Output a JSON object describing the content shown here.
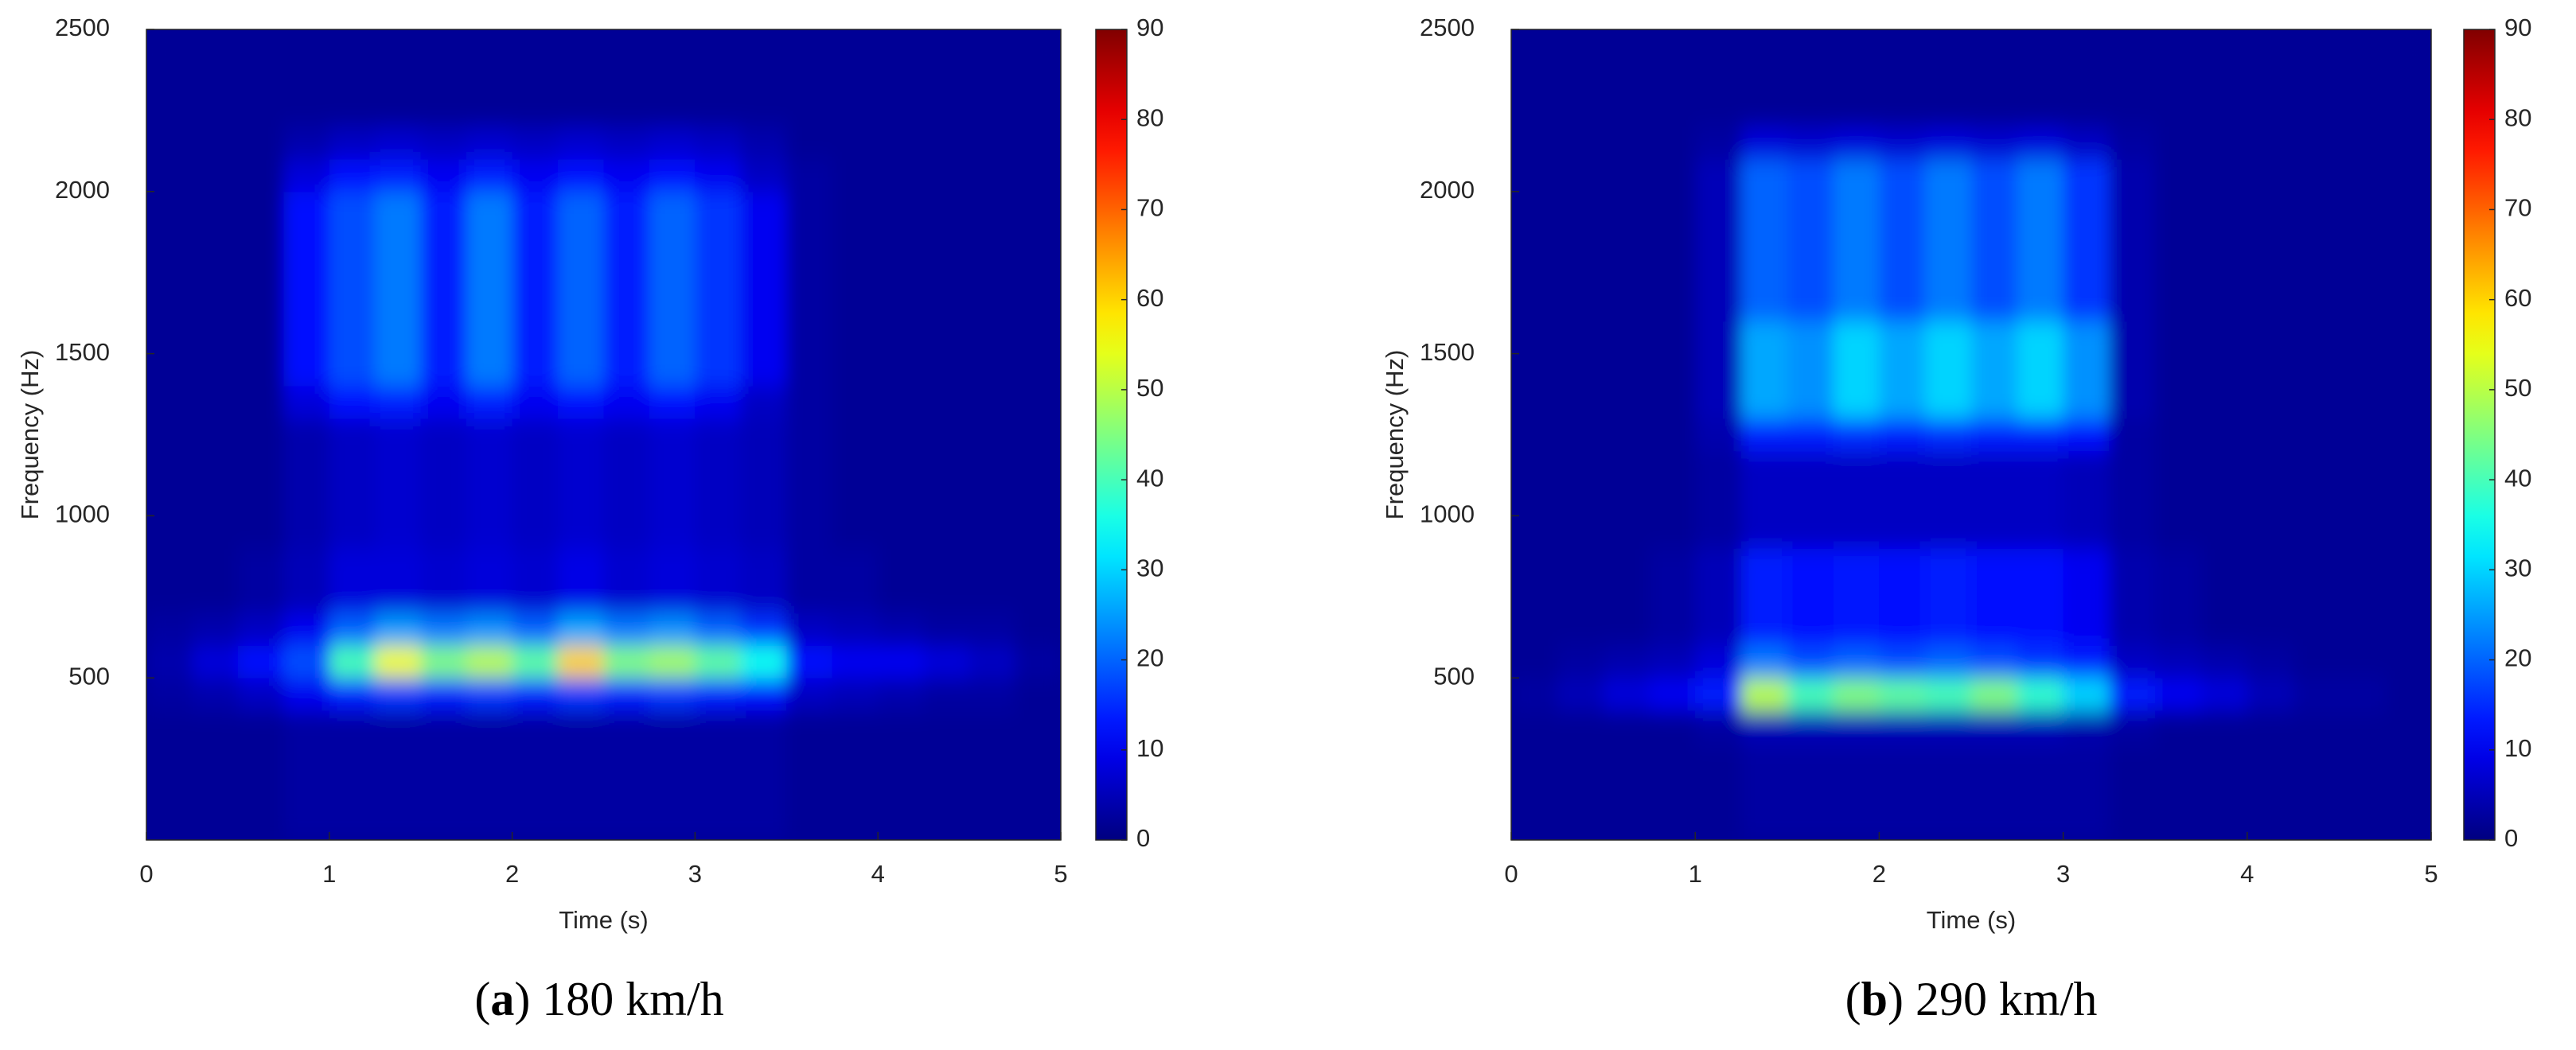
{
  "chart_data": [
    {
      "type": "heatmap",
      "xlabel": "Time (s)",
      "ylabel": "Frequency (Hz)",
      "caption_parts": [
        "(",
        "a",
        ") 180 km/h"
      ],
      "xlim": [
        0,
        5
      ],
      "xticks": [
        0,
        1,
        2,
        3,
        4,
        5
      ],
      "ylim": [
        0,
        2500
      ],
      "yticks": [
        500,
        1000,
        1500,
        2000,
        2500
      ],
      "xbins": [
        0,
        0.25,
        0.5,
        0.75,
        1,
        1.25,
        1.5,
        1.75,
        2,
        2.25,
        2.5,
        2.75,
        3,
        3.25,
        3.5,
        3.75,
        4,
        4.25,
        4.5,
        4.75,
        5
      ],
      "ybins": [
        0,
        100,
        200,
        300,
        400,
        500,
        600,
        700,
        800,
        900,
        1000,
        1100,
        1200,
        1300,
        1400,
        1500,
        1600,
        1700,
        1800,
        1900,
        2000,
        2100,
        2200,
        2300,
        2400,
        2500
      ],
      "colormap": "jet",
      "clim": [
        0,
        90
      ],
      "cticks": [
        0,
        10,
        20,
        30,
        40,
        50,
        60,
        70,
        80,
        90
      ],
      "z": [
        [
          2,
          2,
          2,
          3,
          3,
          3,
          3,
          3,
          3,
          3,
          3,
          3,
          3,
          3,
          2,
          2,
          2,
          2,
          2,
          2
        ],
        [
          2,
          2,
          2,
          3,
          3,
          3,
          3,
          3,
          3,
          3,
          3,
          3,
          3,
          3,
          2,
          2,
          2,
          2,
          2,
          2
        ],
        [
          2,
          2,
          2,
          3,
          3,
          3,
          3,
          3,
          3,
          3,
          3,
          3,
          3,
          3,
          2,
          2,
          2,
          2,
          2,
          2
        ],
        [
          2,
          2,
          2,
          3,
          3,
          3,
          3,
          3,
          3,
          3,
          3,
          3,
          3,
          3,
          2,
          2,
          2,
          2,
          2,
          2
        ],
        [
          3,
          4,
          6,
          10,
          14,
          16,
          14,
          16,
          14,
          16,
          14,
          16,
          14,
          12,
          6,
          5,
          4,
          3,
          3,
          2
        ],
        [
          4,
          8,
          12,
          18,
          40,
          55,
          45,
          50,
          42,
          60,
          45,
          48,
          42,
          35,
          12,
          10,
          10,
          8,
          6,
          3
        ],
        [
          3,
          4,
          6,
          10,
          20,
          25,
          22,
          24,
          20,
          26,
          22,
          24,
          20,
          16,
          6,
          5,
          4,
          3,
          3,
          2
        ],
        [
          2,
          2,
          3,
          5,
          8,
          8,
          7,
          8,
          7,
          9,
          7,
          8,
          7,
          6,
          3,
          3,
          2,
          2,
          2,
          2
        ],
        [
          2,
          2,
          3,
          5,
          8,
          8,
          7,
          8,
          7,
          9,
          7,
          8,
          7,
          6,
          3,
          3,
          2,
          2,
          2,
          2
        ],
        [
          2,
          2,
          2,
          4,
          6,
          7,
          6,
          7,
          6,
          7,
          6,
          7,
          6,
          5,
          3,
          2,
          2,
          2,
          2,
          2
        ],
        [
          2,
          2,
          2,
          4,
          6,
          7,
          6,
          7,
          6,
          7,
          6,
          7,
          6,
          5,
          3,
          2,
          2,
          2,
          2,
          2
        ],
        [
          2,
          2,
          2,
          4,
          6,
          7,
          6,
          7,
          6,
          7,
          6,
          7,
          6,
          5,
          3,
          2,
          2,
          2,
          2,
          2
        ],
        [
          2,
          2,
          2,
          4,
          6,
          7,
          6,
          7,
          6,
          7,
          6,
          7,
          6,
          5,
          3,
          2,
          2,
          2,
          2,
          2
        ],
        [
          2,
          2,
          2,
          8,
          12,
          14,
          10,
          14,
          10,
          12,
          10,
          12,
          10,
          6,
          3,
          2,
          2,
          2,
          2,
          2
        ],
        [
          2,
          2,
          2,
          12,
          18,
          22,
          14,
          22,
          14,
          20,
          14,
          20,
          16,
          10,
          3,
          2,
          2,
          2,
          2,
          2
        ],
        [
          2,
          2,
          2,
          12,
          18,
          22,
          14,
          22,
          14,
          20,
          14,
          20,
          16,
          10,
          3,
          2,
          2,
          2,
          2,
          2
        ],
        [
          2,
          2,
          2,
          12,
          18,
          22,
          14,
          22,
          14,
          20,
          14,
          20,
          16,
          10,
          3,
          2,
          2,
          2,
          2,
          2
        ],
        [
          2,
          2,
          2,
          12,
          18,
          22,
          14,
          22,
          14,
          20,
          14,
          20,
          16,
          10,
          3,
          2,
          2,
          2,
          2,
          2
        ],
        [
          2,
          2,
          2,
          12,
          18,
          22,
          14,
          22,
          14,
          20,
          14,
          20,
          16,
          10,
          3,
          2,
          2,
          2,
          2,
          2
        ],
        [
          2,
          2,
          2,
          12,
          18,
          22,
          14,
          22,
          14,
          20,
          14,
          20,
          16,
          10,
          3,
          2,
          2,
          2,
          2,
          2
        ],
        [
          2,
          2,
          2,
          8,
          12,
          14,
          10,
          14,
          10,
          12,
          10,
          12,
          10,
          6,
          3,
          2,
          2,
          2,
          2,
          2
        ],
        [
          2,
          2,
          2,
          4,
          6,
          7,
          6,
          7,
          6,
          7,
          6,
          7,
          6,
          4,
          2,
          2,
          2,
          2,
          2,
          2
        ],
        [
          2,
          2,
          2,
          2,
          2,
          2,
          2,
          2,
          2,
          2,
          2,
          2,
          2,
          2,
          2,
          2,
          2,
          2,
          2,
          2
        ],
        [
          2,
          2,
          2,
          2,
          2,
          2,
          2,
          2,
          2,
          2,
          2,
          2,
          2,
          2,
          2,
          2,
          2,
          2,
          2,
          2
        ],
        [
          2,
          2,
          2,
          2,
          2,
          2,
          2,
          2,
          2,
          2,
          2,
          2,
          2,
          2,
          2,
          2,
          2,
          2,
          2,
          2
        ]
      ]
    },
    {
      "type": "heatmap",
      "xlabel": "Time (s)",
      "ylabel": "Frequency (Hz)",
      "caption_parts": [
        "(",
        "b",
        ") 290 km/h"
      ],
      "xlim": [
        0,
        5
      ],
      "xticks": [
        0,
        1,
        2,
        3,
        4,
        5
      ],
      "ylim": [
        0,
        2500
      ],
      "yticks": [
        500,
        1000,
        1500,
        2000,
        2500
      ],
      "xbins": [
        0,
        0.25,
        0.5,
        0.75,
        1,
        1.25,
        1.5,
        1.75,
        2,
        2.25,
        2.5,
        2.75,
        3,
        3.25,
        3.5,
        3.75,
        4,
        4.25,
        4.5,
        4.75,
        5
      ],
      "ybins": [
        0,
        100,
        200,
        300,
        400,
        500,
        600,
        700,
        800,
        900,
        1000,
        1100,
        1200,
        1300,
        1400,
        1500,
        1600,
        1700,
        1800,
        1900,
        2000,
        2100,
        2200,
        2300,
        2400,
        2500
      ],
      "colormap": "jet",
      "clim": [
        0,
        90
      ],
      "cticks": [
        0,
        10,
        20,
        30,
        40,
        50,
        60,
        70,
        80,
        90
      ],
      "z": [
        [
          2,
          2,
          2,
          2,
          2,
          3,
          3,
          3,
          3,
          3,
          3,
          3,
          3,
          2,
          2,
          2,
          2,
          2,
          2,
          2
        ],
        [
          2,
          2,
          2,
          2,
          2,
          3,
          3,
          3,
          3,
          3,
          3,
          3,
          3,
          2,
          2,
          2,
          2,
          2,
          2,
          2
        ],
        [
          2,
          2,
          2,
          2,
          2,
          3,
          3,
          3,
          3,
          3,
          3,
          3,
          3,
          2,
          2,
          2,
          2,
          2,
          2,
          2
        ],
        [
          2,
          2,
          2,
          2,
          3,
          5,
          5,
          5,
          5,
          5,
          5,
          5,
          4,
          3,
          2,
          2,
          2,
          2,
          2,
          2
        ],
        [
          3,
          5,
          8,
          10,
          14,
          50,
          40,
          45,
          42,
          40,
          45,
          38,
          30,
          14,
          10,
          8,
          5,
          3,
          3,
          2
        ],
        [
          2,
          3,
          4,
          5,
          8,
          22,
          18,
          20,
          18,
          20,
          18,
          16,
          14,
          6,
          5,
          4,
          3,
          2,
          2,
          2
        ],
        [
          2,
          2,
          2,
          3,
          5,
          14,
          12,
          13,
          12,
          14,
          12,
          12,
          10,
          4,
          3,
          2,
          2,
          2,
          2,
          2
        ],
        [
          2,
          2,
          2,
          3,
          5,
          14,
          12,
          13,
          12,
          14,
          12,
          12,
          10,
          4,
          3,
          2,
          2,
          2,
          2,
          2
        ],
        [
          2,
          2,
          2,
          3,
          5,
          14,
          12,
          13,
          12,
          14,
          12,
          12,
          10,
          4,
          3,
          2,
          2,
          2,
          2,
          2
        ],
        [
          2,
          2,
          2,
          2,
          3,
          6,
          6,
          6,
          6,
          6,
          6,
          6,
          5,
          3,
          2,
          2,
          2,
          2,
          2,
          2
        ],
        [
          2,
          2,
          2,
          2,
          3,
          6,
          6,
          6,
          6,
          6,
          6,
          6,
          5,
          3,
          2,
          2,
          2,
          2,
          2,
          2
        ],
        [
          2,
          2,
          2,
          2,
          3,
          6,
          6,
          6,
          6,
          6,
          6,
          6,
          5,
          3,
          2,
          2,
          2,
          2,
          2,
          2
        ],
        [
          2,
          2,
          2,
          2,
          4,
          14,
          14,
          15,
          14,
          15,
          14,
          14,
          12,
          3,
          2,
          2,
          2,
          2,
          2,
          2
        ],
        [
          2,
          2,
          2,
          2,
          5,
          26,
          24,
          30,
          26,
          30,
          26,
          30,
          24,
          4,
          2,
          2,
          2,
          2,
          2,
          2
        ],
        [
          2,
          2,
          2,
          2,
          5,
          26,
          24,
          30,
          26,
          30,
          26,
          30,
          24,
          4,
          2,
          2,
          2,
          2,
          2,
          2
        ],
        [
          2,
          2,
          2,
          2,
          5,
          26,
          24,
          30,
          26,
          30,
          26,
          30,
          24,
          4,
          2,
          2,
          2,
          2,
          2,
          2
        ],
        [
          2,
          2,
          2,
          2,
          5,
          20,
          18,
          22,
          18,
          22,
          18,
          22,
          16,
          4,
          2,
          2,
          2,
          2,
          2,
          2
        ],
        [
          2,
          2,
          2,
          2,
          5,
          20,
          18,
          22,
          18,
          22,
          18,
          22,
          16,
          4,
          2,
          2,
          2,
          2,
          2,
          2
        ],
        [
          2,
          2,
          2,
          2,
          5,
          20,
          18,
          22,
          18,
          22,
          18,
          22,
          16,
          4,
          2,
          2,
          2,
          2,
          2,
          2
        ],
        [
          2,
          2,
          2,
          2,
          5,
          20,
          18,
          22,
          18,
          22,
          18,
          22,
          16,
          4,
          2,
          2,
          2,
          2,
          2,
          2
        ],
        [
          2,
          2,
          2,
          2,
          5,
          20,
          18,
          22,
          18,
          22,
          18,
          22,
          16,
          4,
          2,
          2,
          2,
          2,
          2,
          2
        ],
        [
          2,
          2,
          2,
          2,
          3,
          8,
          7,
          8,
          7,
          8,
          7,
          8,
          6,
          3,
          2,
          2,
          2,
          2,
          2,
          2
        ],
        [
          2,
          2,
          2,
          2,
          2,
          2,
          2,
          2,
          2,
          2,
          2,
          2,
          2,
          2,
          2,
          2,
          2,
          2,
          2,
          2
        ],
        [
          2,
          2,
          2,
          2,
          2,
          2,
          2,
          2,
          2,
          2,
          2,
          2,
          2,
          2,
          2,
          2,
          2,
          2,
          2,
          2
        ],
        [
          2,
          2,
          2,
          2,
          2,
          2,
          2,
          2,
          2,
          2,
          2,
          2,
          2,
          2,
          2,
          2,
          2,
          2,
          2,
          2
        ]
      ]
    }
  ]
}
